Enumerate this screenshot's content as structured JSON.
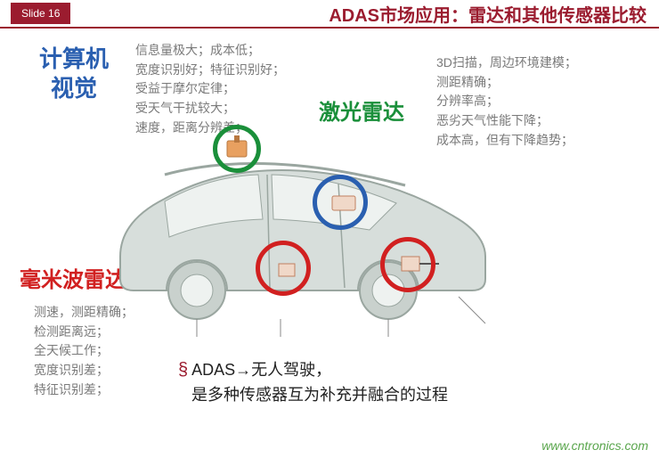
{
  "header": {
    "slide_label": "Slide 16",
    "title": "ADAS市场应用：雷达和其他传感器比较",
    "accent_color": "#9b1c2f",
    "border_color": "#9b1c2f",
    "tag_bg": "#9b1c2f"
  },
  "labels": {
    "vision": {
      "line1": "计算机",
      "line2": "视觉",
      "color": "#2a5fb0",
      "fontsize": 26
    },
    "lidar": {
      "text": "激光雷达",
      "color": "#1a8f3a",
      "fontsize": 24
    },
    "mmwave": {
      "text": "毫米波雷达",
      "color": "#d12020",
      "fontsize": 24
    }
  },
  "bullets": {
    "vision": [
      "信息量极大；成本低；",
      "宽度识别好；特征识别好；",
      "受益于摩尔定律；",
      "受天气干扰较大；",
      "速度，距离分辨差；"
    ],
    "lidar": [
      "3D扫描，周边环境建模；",
      "测距精确；",
      "分辨率高；",
      "恶劣天气性能下降；",
      "成本高，但有下降趋势；"
    ],
    "mmwave": [
      "测速，测距精确；",
      "检测距离远；",
      "全天候工作；",
      "宽度识别差；",
      "特征识别差；"
    ]
  },
  "bottom": {
    "section": "§",
    "line1": "ADAS→无人驾驶，",
    "line2": "是多种传感器互为补充并融合的过程"
  },
  "rings": {
    "green": {
      "color": "#1a8f3a",
      "size": 54
    },
    "blue": {
      "color": "#2a5fb0",
      "size": 62
    },
    "red": {
      "color": "#d12020",
      "size": 62
    }
  },
  "car": {
    "body_fill": "#d7dedb",
    "body_stroke": "#9aa6a0",
    "window_fill": "#eef2f0",
    "wheel_fill": "#c9d1cd"
  },
  "watermark": {
    "text": "www.cntronics.com",
    "color": "#5aa64d"
  }
}
